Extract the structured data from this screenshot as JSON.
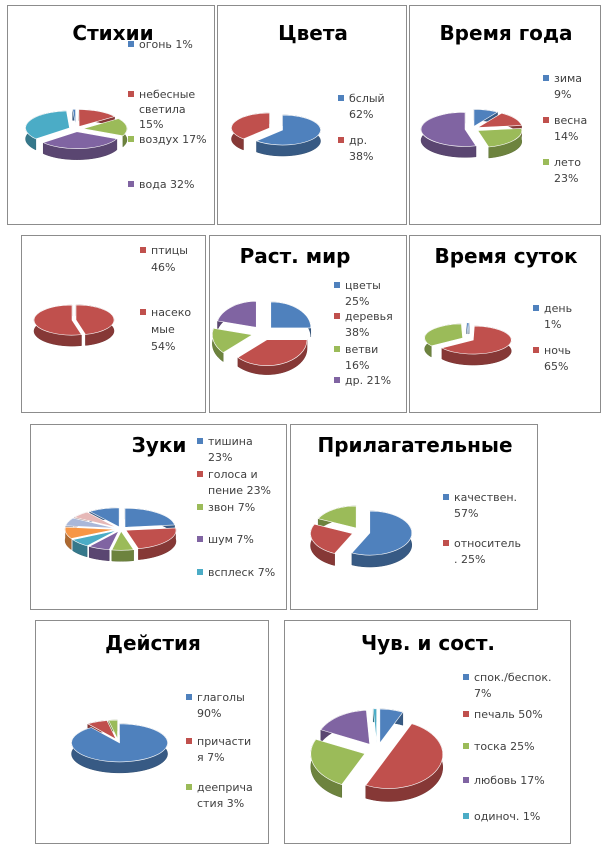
{
  "chart_data": [
    {
      "type": "pie",
      "title": "Стихии",
      "series": [
        {
          "values": [
            1,
            15,
            17,
            32
          ]
        }
      ],
      "legend": [
        "огонь 1%",
        "небесные светила 15%",
        "воздух 17%",
        "вода 32%"
      ],
      "colors": [
        "#4f81bd",
        "#c0504d",
        "#9bbb59",
        "#8064a2",
        "#4bacc6"
      ],
      "legend_position": "right"
    },
    {
      "type": "pie",
      "title": "Цвета",
      "series": [
        {
          "values": [
            62,
            38
          ]
        }
      ],
      "legend": [
        "бслый 62%",
        "др. 38%"
      ],
      "colors": [
        "#4f81bd",
        "#c0504d"
      ],
      "legend_position": "right"
    },
    {
      "type": "pie",
      "title": "Время года",
      "series": [
        {
          "values": [
            9,
            14,
            23
          ]
        }
      ],
      "legend": [
        "зима 9%",
        "весна 14%",
        "лето 23%"
      ],
      "colors": [
        "#4f81bd",
        "#c0504d",
        "#9bbb59",
        "#8064a2"
      ],
      "legend_position": "right"
    },
    {
      "type": "pie",
      "title": "",
      "series": [
        {
          "values": [
            46,
            54
          ]
        }
      ],
      "legend": [
        "птицы 46%",
        "насеко мые 54%"
      ],
      "colors": [
        "#c0504d",
        "#c0504d"
      ],
      "legend_position": "right"
    },
    {
      "type": "pie",
      "title": "Раст. мир",
      "series": [
        {
          "values": [
            25,
            38,
            16,
            21
          ]
        }
      ],
      "legend": [
        "цветы 25%",
        "деревья 38%",
        "ветви 16%",
        "др. 21%"
      ],
      "colors": [
        "#4f81bd",
        "#c0504d",
        "#9bbb59",
        "#8064a2"
      ],
      "legend_position": "right"
    },
    {
      "type": "pie",
      "title": "Время суток",
      "series": [
        {
          "values": [
            1,
            65
          ]
        }
      ],
      "legend": [
        "день 1%",
        "ночь 65%"
      ],
      "colors": [
        "#4f81bd",
        "#c0504d",
        "#9bbb59"
      ],
      "legend_position": "right"
    },
    {
      "type": "pie",
      "title": "Зуки",
      "series": [
        {
          "values": [
            23,
            23,
            7,
            7,
            7
          ]
        }
      ],
      "legend": [
        "тишина 23%",
        "голоса и пение 23%",
        "звон 7%",
        "шум 7%",
        "всплеск 7%"
      ],
      "colors": [
        "#4f81bd",
        "#c0504d",
        "#9bbb59",
        "#8064a2",
        "#4bacc6",
        "#f79646",
        "#a9b7d9",
        "#e6b8b7"
      ],
      "legend_position": "right"
    },
    {
      "type": "pie",
      "title": "Прилагательные",
      "series": [
        {
          "values": [
            57,
            25
          ]
        }
      ],
      "legend": [
        "качествен. 57%",
        "относитель . 25%"
      ],
      "colors": [
        "#4f81bd",
        "#c0504d",
        "#9bbb59"
      ],
      "legend_position": "right"
    },
    {
      "type": "pie",
      "title": "Дейстия",
      "series": [
        {
          "values": [
            90,
            7,
            3
          ]
        }
      ],
      "legend": [
        "глаголы 90%",
        "причасти я 7%",
        "дееприча стия 3%"
      ],
      "colors": [
        "#4f81bd",
        "#c0504d",
        "#9bbb59"
      ],
      "legend_position": "right"
    },
    {
      "type": "pie",
      "title": "Чув. и сост.",
      "series": [
        {
          "values": [
            7,
            50,
            25,
            17,
            1
          ]
        }
      ],
      "legend": [
        "спок./беспок. 7%",
        "печаль 50%",
        "тоска 25%",
        "любовь 17%",
        "одиноч. 1%"
      ],
      "colors": [
        "#4f81bd",
        "#c0504d",
        "#9bbb59",
        "#8064a2",
        "#4bacc6"
      ],
      "legend_position": "right"
    }
  ]
}
